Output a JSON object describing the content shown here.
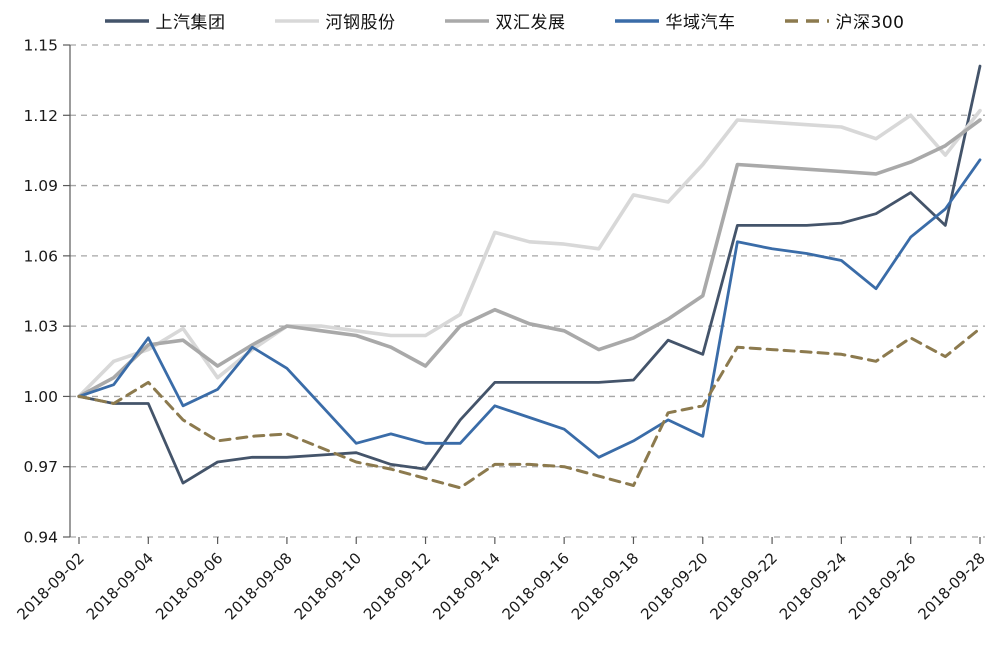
{
  "chart_data": {
    "type": "line",
    "title": "",
    "legend_position": "top",
    "grid": "horizontal-dashed",
    "grid_color": "#a6a6a6",
    "axis_color": "#595959",
    "ylim": [
      0.94,
      1.15
    ],
    "y_ticks": [
      0.94,
      0.97,
      1.0,
      1.03,
      1.06,
      1.09,
      1.12,
      1.15
    ],
    "y_tick_labels": [
      "0.94",
      "0.97",
      "1.00",
      "1.03",
      "1.06",
      "1.09",
      "1.12",
      "1.15"
    ],
    "x": [
      "2018-09-02",
      "2018-09-03",
      "2018-09-04",
      "2018-09-05",
      "2018-09-06",
      "2018-09-07",
      "2018-09-08",
      "2018-09-09",
      "2018-09-10",
      "2018-09-11",
      "2018-09-12",
      "2018-09-13",
      "2018-09-14",
      "2018-09-15",
      "2018-09-16",
      "2018-09-17",
      "2018-09-18",
      "2018-09-19",
      "2018-09-20",
      "2018-09-21",
      "2018-09-22",
      "2018-09-23",
      "2018-09-24",
      "2018-09-25",
      "2018-09-26",
      "2018-09-27",
      "2018-09-28"
    ],
    "x_label_every": 2,
    "x_tick_labels": [
      "2018-09-02",
      "2018-09-04",
      "2018-09-06",
      "2018-09-08",
      "2018-09-10",
      "2018-09-12",
      "2018-09-14",
      "2018-09-16",
      "2018-09-18",
      "2018-09-20",
      "2018-09-22",
      "2018-09-24",
      "2018-09-26",
      "2018-09-28"
    ],
    "series": [
      {
        "name": "上汽集团",
        "color": "#44546a",
        "style": "solid",
        "width": 2.8,
        "values": [
          1.0,
          0.997,
          0.997,
          0.963,
          0.972,
          0.974,
          0.974,
          0.975,
          0.976,
          0.971,
          0.969,
          0.99,
          1.006,
          1.006,
          1.006,
          1.006,
          1.007,
          1.024,
          1.018,
          1.073,
          1.073,
          1.073,
          1.074,
          1.078,
          1.087,
          1.073,
          1.141
        ]
      },
      {
        "name": "河钢股份",
        "color": "#d8d8d8",
        "style": "solid",
        "width": 3.6,
        "values": [
          1.0,
          1.015,
          1.02,
          1.029,
          1.008,
          1.02,
          1.03,
          1.03,
          1.028,
          1.026,
          1.026,
          1.035,
          1.07,
          1.066,
          1.065,
          1.063,
          1.086,
          1.083,
          1.099,
          1.118,
          1.117,
          1.116,
          1.115,
          1.11,
          1.12,
          1.103,
          1.122
        ]
      },
      {
        "name": "双汇发展",
        "color": "#a9a9a9",
        "style": "solid",
        "width": 3.6,
        "values": [
          1.0,
          1.008,
          1.022,
          1.024,
          1.013,
          1.022,
          1.03,
          1.028,
          1.026,
          1.021,
          1.013,
          1.03,
          1.037,
          1.031,
          1.028,
          1.02,
          1.025,
          1.033,
          1.043,
          1.099,
          1.098,
          1.097,
          1.096,
          1.095,
          1.1,
          1.107,
          1.118
        ]
      },
      {
        "name": "华域汽车",
        "color": "#3a6ca8",
        "style": "solid",
        "width": 2.8,
        "values": [
          1.0,
          1.005,
          1.025,
          0.996,
          1.003,
          1.021,
          1.012,
          0.996,
          0.98,
          0.984,
          0.98,
          0.98,
          0.996,
          0.991,
          0.986,
          0.974,
          0.981,
          0.99,
          0.983,
          1.066,
          1.063,
          1.061,
          1.058,
          1.046,
          1.068,
          1.08,
          1.101
        ]
      },
      {
        "name": "沪深300",
        "color": "#8c7a4e",
        "style": "dashed",
        "width": 3,
        "values": [
          1.0,
          0.997,
          1.006,
          0.99,
          0.981,
          0.983,
          0.984,
          0.978,
          0.972,
          0.969,
          0.965,
          0.961,
          0.971,
          0.971,
          0.97,
          0.966,
          0.962,
          0.993,
          0.996,
          1.021,
          1.02,
          1.019,
          1.018,
          1.015,
          1.025,
          1.017,
          1.029
        ]
      }
    ]
  }
}
